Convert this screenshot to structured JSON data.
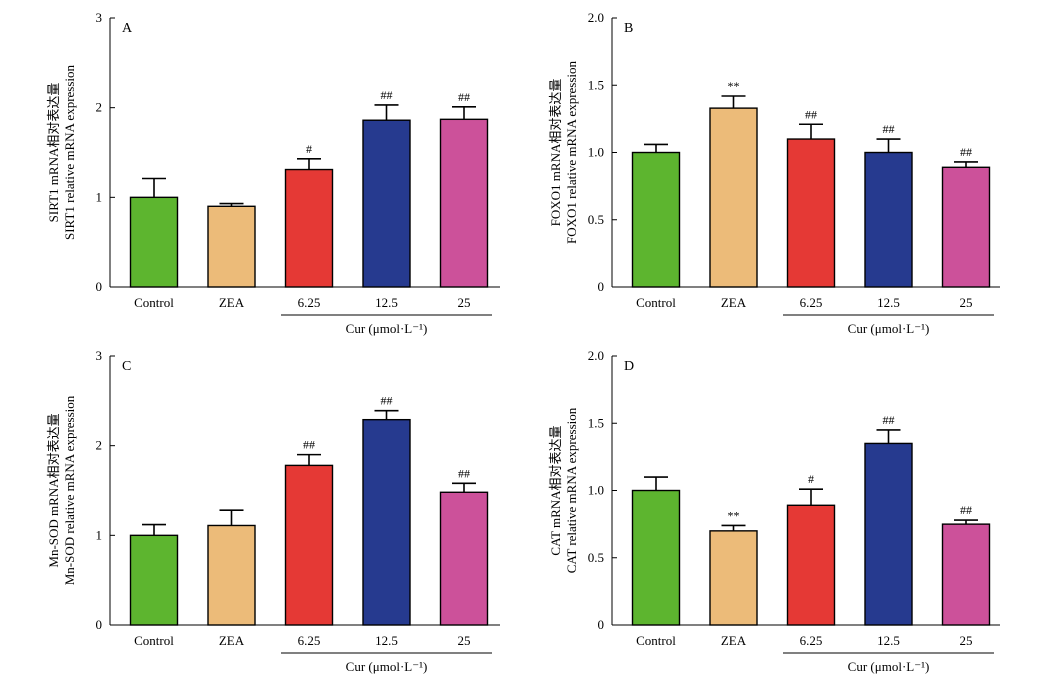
{
  "figure": {
    "colors": {
      "Control": "#5db52f",
      "ZEA": "#ecbb79",
      "6.25": "#e53935",
      "12.5": "#263a8f",
      "25": "#cc519a"
    }
  },
  "chart_data": [
    {
      "type": "bar",
      "panel": "A",
      "ylabel_line1": "SIRT1 mRNA相对表达量",
      "ylabel_line2": "SIRT1 relative mRNA expression",
      "categories": [
        "Control",
        "ZEA",
        "6.25",
        "12.5",
        "25"
      ],
      "values": [
        1.0,
        0.9,
        1.31,
        1.86,
        1.87
      ],
      "errors": [
        0.21,
        0.03,
        0.12,
        0.17,
        0.14
      ],
      "significance": [
        "",
        "",
        "#",
        "##",
        "##"
      ],
      "group_label": "Cur (μmol·L⁻¹)",
      "ylim": [
        0,
        3
      ],
      "yticks": [
        "0",
        "1",
        "2",
        "3"
      ]
    },
    {
      "type": "bar",
      "panel": "B",
      "ylabel_line1": "FOXO1 mRNA相对表达量",
      "ylabel_line2": "FOXO1 relative mRNA expression",
      "categories": [
        "Control",
        "ZEA",
        "6.25",
        "12.5",
        "25"
      ],
      "values": [
        1.0,
        1.33,
        1.1,
        1.0,
        0.89
      ],
      "errors": [
        0.06,
        0.09,
        0.11,
        0.1,
        0.04
      ],
      "significance": [
        "",
        "**",
        "##",
        "##",
        "##"
      ],
      "group_label": "Cur (μmol·L⁻¹)",
      "ylim": [
        0,
        2.0
      ],
      "yticks": [
        "0",
        "0.5",
        "1.0",
        "1.5",
        "2.0"
      ]
    },
    {
      "type": "bar",
      "panel": "C",
      "ylabel_line1": "Mn-SOD mRNA相对表达量",
      "ylabel_line2": "Mn-SOD relative mRNA expression",
      "categories": [
        "Control",
        "ZEA",
        "6.25",
        "12.5",
        "25"
      ],
      "values": [
        1.0,
        1.11,
        1.78,
        2.29,
        1.48
      ],
      "errors": [
        0.12,
        0.17,
        0.12,
        0.1,
        0.1
      ],
      "significance": [
        "",
        "",
        "##",
        "##",
        "##"
      ],
      "group_label": "Cur (μmol·L⁻¹)",
      "ylim": [
        0,
        3
      ],
      "yticks": [
        "0",
        "1",
        "2",
        "3"
      ]
    },
    {
      "type": "bar",
      "panel": "D",
      "ylabel_line1": "CAT mRNA相对表达量",
      "ylabel_line2": "CAT relative mRNA expression",
      "categories": [
        "Control",
        "ZEA",
        "6.25",
        "12.5",
        "25"
      ],
      "values": [
        1.0,
        0.7,
        0.89,
        1.35,
        0.75
      ],
      "errors": [
        0.1,
        0.04,
        0.12,
        0.1,
        0.03
      ],
      "significance": [
        "",
        "**",
        "#",
        "##",
        "##"
      ],
      "group_label": "Cur (μmol·L⁻¹)",
      "ylim": [
        0,
        2.0
      ],
      "yticks": [
        "0",
        "0.5",
        "1.0",
        "1.5",
        "2.0"
      ]
    }
  ]
}
